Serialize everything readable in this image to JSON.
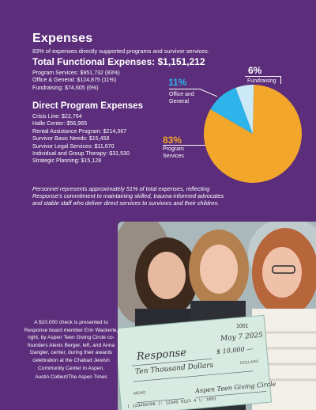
{
  "heading": "Expenses",
  "subheading": "83% of expenses directly supported programs and survivor services.",
  "functional": {
    "title": "Total Functional Expenses: $1,151,212",
    "items": [
      "Program Services: $951,732 (83%)",
      "Office & General: $124,875 (11%)",
      "Fundraising: $74,605 (6%)"
    ]
  },
  "program": {
    "title": "Direct Program Expenses",
    "items": [
      "Crisis Line: $22,764",
      "Halle Center: $56,965",
      "Rental Assistance Program: $214,367",
      "Survivor Basic Needs: $15,458",
      "Survivor Legal Services: $11,670",
      "Individual and Group Therapy: $31,530",
      "Strategic Planning: $15,128"
    ]
  },
  "chart_data": {
    "type": "pie",
    "slices": [
      {
        "label": "Program Services",
        "percent_label": "83%",
        "value": 83,
        "color": "#f3a72a"
      },
      {
        "label": "Office and General",
        "percent_label": "11%",
        "value": 11,
        "color": "#2db4ea"
      },
      {
        "label": "Fundraising",
        "percent_label": "6%",
        "value": 6,
        "color": "#cbe9f6"
      }
    ]
  },
  "pie_labels": {
    "program_pct": "83%",
    "program_line1": "Program",
    "program_line2": "Services",
    "office_pct": "11%",
    "office_line1": "Office and",
    "office_line2": "General",
    "fund_pct": "6%",
    "fund_line1": "Fundraising"
  },
  "note": "Personnel represents approximately 51% of total expenses, reflecting Response's commitment to maintaining skilled, trauma-informed advocates and stable staff who deliver direct services to survivors and their children.",
  "check": {
    "number": "1001",
    "date": "May 7 2025",
    "payee": "Response",
    "amount": "$ 10,000 —",
    "amount_words": "Ten Thousand Dollars",
    "dollars_label": "DOLLARS",
    "memo_label": "MEMO",
    "signature": "Aspen Teen Giving Circle",
    "routing": "| 123456789 |: 12345 6123 4 |: 1001"
  },
  "caption": "A $10,000 check is presented to Response board member Erin Wackerle, right, by Aspen Teen Giving Circle co-founders Alexis Berger, left, and Anna Dangler, center, during their awards celebration at the Chabad Jewish Community Center in Aspen.",
  "credit": "Austin Colbert/The Aspen Times"
}
